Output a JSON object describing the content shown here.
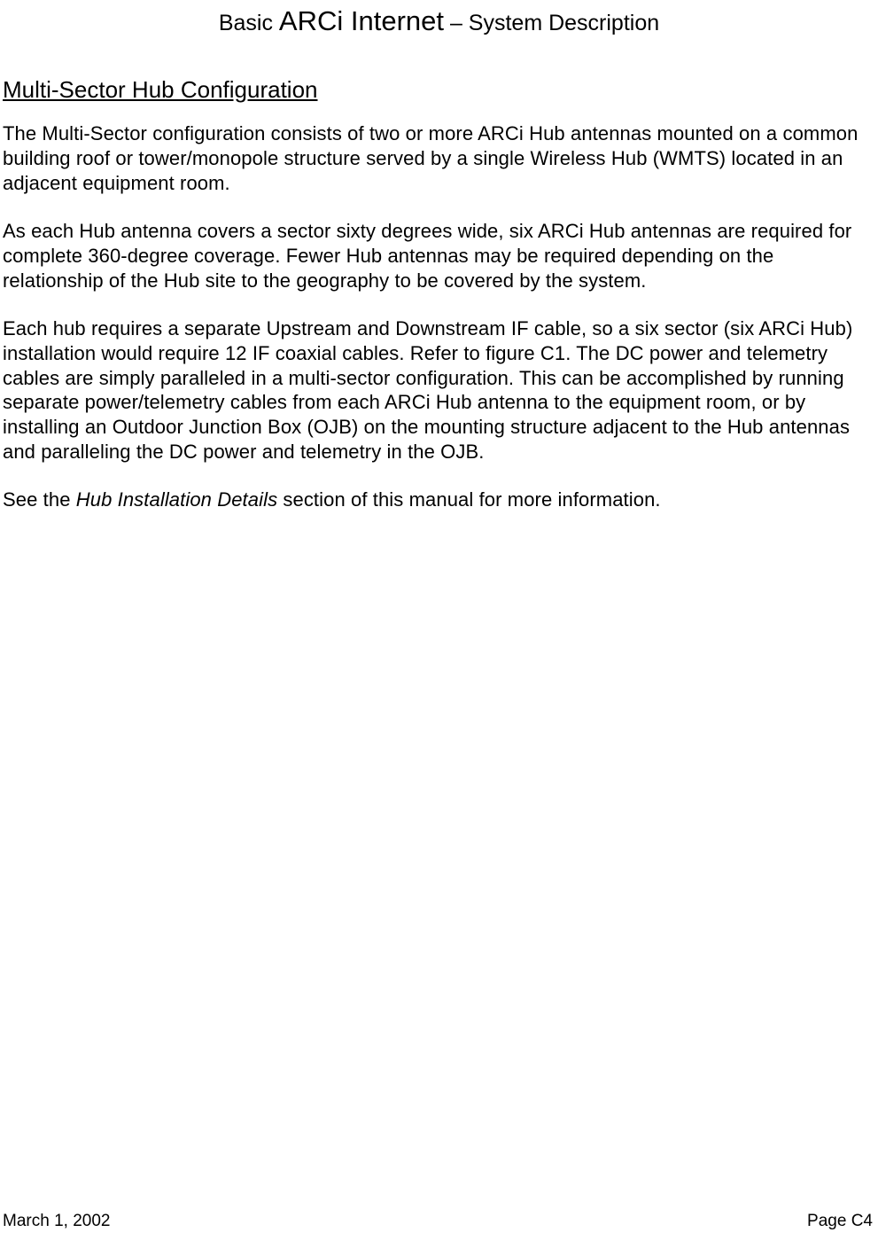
{
  "header": {
    "basic": "Basic ",
    "arci": "ARCi Internet",
    "separator": " – ",
    "sysdesc": "System Description"
  },
  "section_heading": "Multi-Sector Hub Configuration",
  "paragraphs": {
    "p1": "The Multi-Sector configuration consists of two or more ARCi Hub antennas mounted on a common building roof or tower/monopole structure served by a single Wireless Hub (WMTS) located in an adjacent equipment room.",
    "p2": "As each Hub antenna covers a sector sixty degrees wide, six ARCi Hub antennas are required for complete 360-degree coverage.  Fewer Hub antennas may be required depending on the relationship of the Hub site to the geography to be covered by the system.",
    "p3": "Each hub requires a separate Upstream and Downstream IF cable, so a six sector (six ARCi Hub) installation would require 12 IF coaxial cables.  Refer to figure C1.  The DC power and telemetry cables are simply paralleled in a multi-sector configuration.  This can be accomplished by running separate power/telemetry cables from each ARCi Hub antenna to the equipment room, or by installing an Outdoor Junction Box (OJB) on the mounting structure adjacent to the Hub antennas and paralleling the DC power and telemetry in the OJB.",
    "p4_pre": "See the ",
    "p4_italic": "Hub Installation Details",
    "p4_post": " section of this manual for more information."
  },
  "footer": {
    "date": "March 1, 2002",
    "page": "Page C4"
  },
  "style": {
    "text_color": "#000000",
    "background_color": "#ffffff",
    "header_basic_fontsize": 25,
    "header_arci_fontsize": 31,
    "section_heading_fontsize": 26,
    "body_fontsize": 22,
    "footer_fontsize": 19,
    "font_family": "Tahoma"
  }
}
